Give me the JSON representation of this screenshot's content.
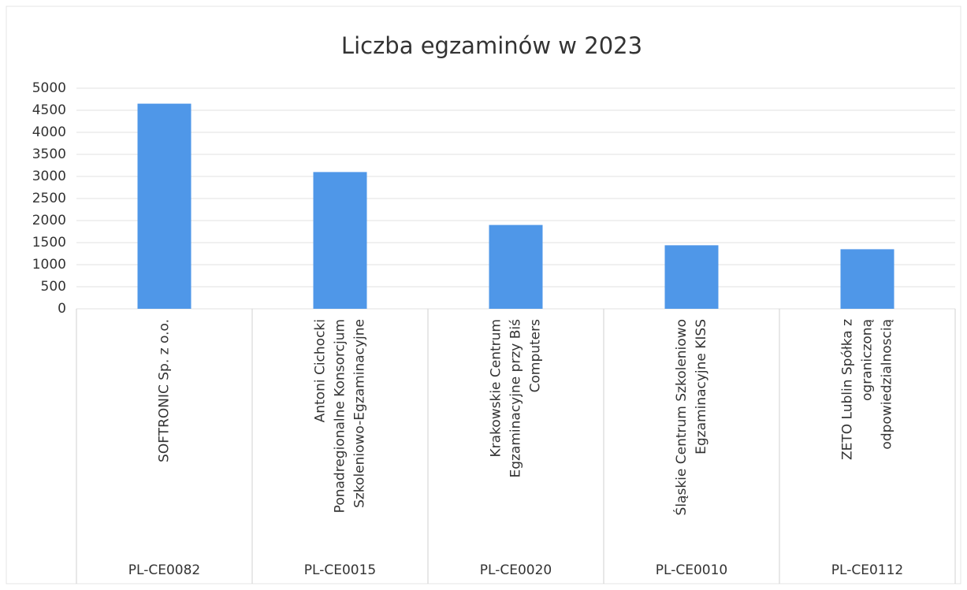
{
  "chart_data": {
    "type": "bar",
    "title": "Liczba egzaminów w 2023",
    "categories": [
      [
        "SOFTRONIC Sp. z o.o."
      ],
      [
        "Antoni Cichocki",
        "Ponadregionalne Konsorcjum",
        "Szkoleniowo-Egzaminacyjne"
      ],
      [
        "Krakowskie Centrum",
        "Egzaminacyjne przy Biś",
        "Computers"
      ],
      [
        "Śląskie Centrum Szkoleniowo",
        "Egzaminacyjne KISS"
      ],
      [
        "ZETO Lublin Spółka z",
        "ograniczoną",
        "odpowiedzialnoscią"
      ]
    ],
    "category_codes": [
      "PL-CE0082",
      "PL-CE0015",
      "PL-CE0020",
      "PL-CE0010",
      "PL-CE0112"
    ],
    "values": [
      4650,
      3100,
      1900,
      1440,
      1350
    ],
    "color": "#4f97e8",
    "ylim": [
      0,
      5000
    ],
    "yticks": [
      0,
      500,
      1000,
      1500,
      2000,
      2500,
      3000,
      3500,
      4000,
      4500,
      5000
    ],
    "grid": true
  }
}
